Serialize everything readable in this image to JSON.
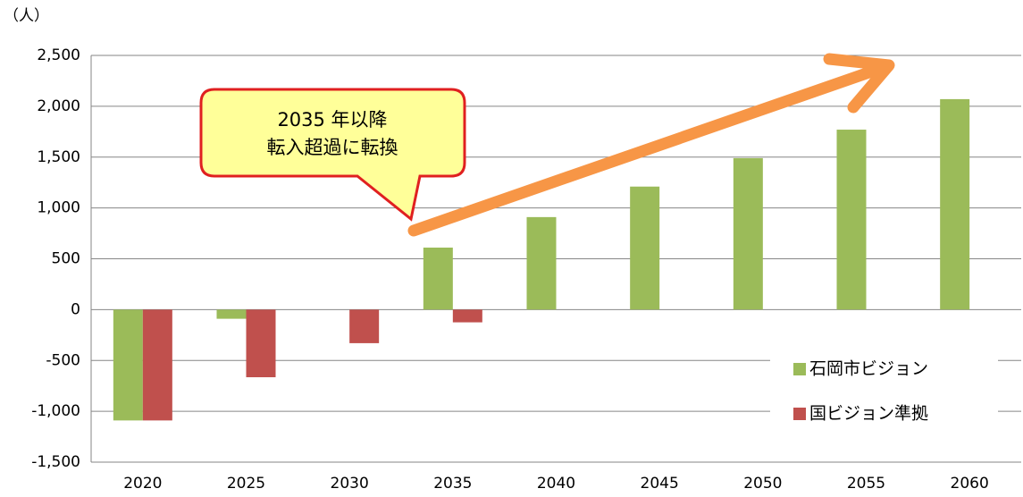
{
  "chart_data": {
    "type": "bar",
    "unit_label": "（人）",
    "categories": [
      "2020",
      "2025",
      "2030",
      "2035",
      "2040",
      "2045",
      "2050",
      "2055",
      "2060"
    ],
    "series": [
      {
        "name": "石岡市ビジョン",
        "color": "#9bbb59",
        "values": [
          -1090,
          -90,
          null,
          610,
          910,
          1210,
          1490,
          1770,
          2070
        ]
      },
      {
        "name": "国ビジョン準拠",
        "color": "#c0504d",
        "values": [
          -1090,
          -665,
          -330,
          -125,
          null,
          null,
          null,
          null,
          null
        ]
      }
    ],
    "ylim": [
      -1500,
      2500
    ],
    "yticks": [
      {
        "value": -1500,
        "label": "-1,500"
      },
      {
        "value": -1000,
        "label": "-1,000"
      },
      -500,
      0,
      500,
      {
        "value": 1000,
        "label": "1,000"
      },
      {
        "value": 1500,
        "label": "1,500"
      },
      {
        "value": 2000,
        "label": "2,000"
      },
      {
        "value": 2500,
        "label": "2,500"
      }
    ],
    "grid": true,
    "legend": "lower right",
    "annotations": [
      "2035 年以降",
      "転入超過に転換"
    ]
  }
}
